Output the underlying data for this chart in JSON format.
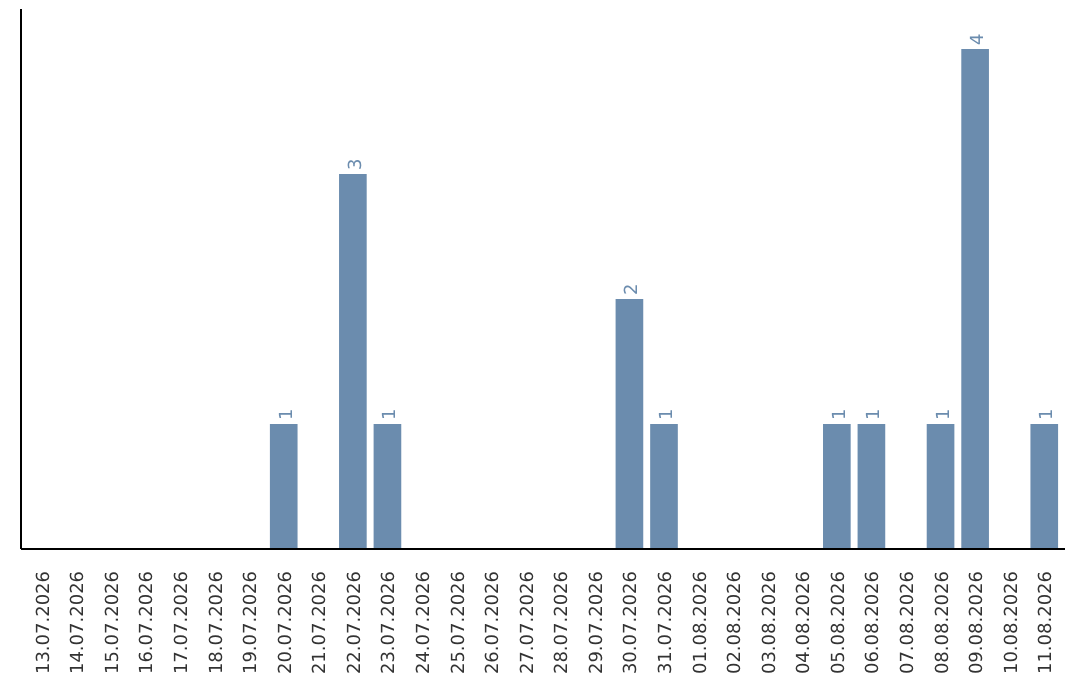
{
  "chart_data": {
    "type": "bar",
    "categories": [
      "13.07.2026",
      "14.07.2026",
      "15.07.2026",
      "16.07.2026",
      "17.07.2026",
      "18.07.2026",
      "19.07.2026",
      "20.07.2026",
      "21.07.2026",
      "22.07.2026",
      "23.07.2026",
      "24.07.2026",
      "25.07.2026",
      "26.07.2026",
      "27.07.2026",
      "28.07.2026",
      "29.07.2026",
      "30.07.2026",
      "31.07.2026",
      "01.08.2026",
      "02.08.2026",
      "03.08.2026",
      "04.08.2026",
      "05.08.2026",
      "06.08.2026",
      "07.08.2026",
      "08.08.2026",
      "09.08.2026",
      "10.08.2026",
      "11.08.2026"
    ],
    "values": [
      0,
      0,
      0,
      0,
      0,
      0,
      0,
      1,
      0,
      3,
      1,
      0,
      0,
      0,
      0,
      0,
      0,
      2,
      1,
      0,
      0,
      0,
      0,
      1,
      1,
      0,
      1,
      4,
      0,
      1
    ],
    "value_labels": [
      null,
      null,
      null,
      null,
      null,
      null,
      null,
      "1",
      null,
      "3",
      "1",
      null,
      null,
      null,
      null,
      null,
      null,
      "2",
      "1",
      null,
      null,
      null,
      null,
      "1",
      "1",
      null,
      "1",
      "4",
      null,
      "1"
    ],
    "color": "#6b8cae",
    "grid": false
  }
}
